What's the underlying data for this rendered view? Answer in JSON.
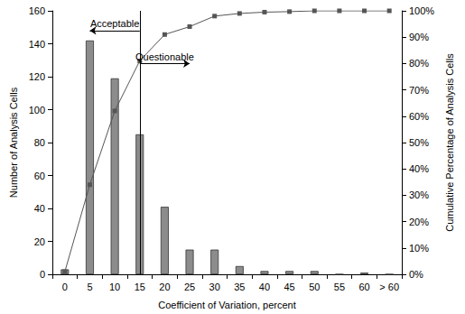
{
  "chart_data": {
    "type": "bar",
    "x_label": "Coefficient of Variation, percent",
    "y_label": "Number of Analysis Cells",
    "y2_label": "Cumulative Percentage of Analysis Cells",
    "categories": [
      "0",
      "5",
      "10",
      "15",
      "20",
      "25",
      "30",
      "35",
      "40",
      "45",
      "50",
      "55",
      "60",
      "> 60"
    ],
    "series": [
      {
        "name": "Number of Analysis Cells",
        "type": "bar",
        "color": "#8c8c8c",
        "values": [
          3,
          142,
          119,
          85,
          41,
          15,
          15,
          5,
          2,
          2,
          2,
          0,
          1,
          0
        ]
      },
      {
        "name": "Cumulative Percentage of Analysis Cells",
        "type": "line",
        "axis": "y2",
        "color": "#555555",
        "marker": "square",
        "line_style": "solid",
        "values": [
          1,
          34,
          62,
          81,
          91,
          94,
          98,
          99,
          99.5,
          99.7,
          100,
          100,
          100,
          100
        ]
      }
    ],
    "ylim": [
      0,
      160
    ],
    "yticks": [
      0,
      20,
      40,
      60,
      80,
      100,
      120,
      140,
      160
    ],
    "y2lim": [
      0,
      100
    ],
    "y2ticks": [
      {
        "value": 0,
        "label": "0%"
      },
      {
        "value": 10,
        "label": "10%"
      },
      {
        "value": 20,
        "label": "20%"
      },
      {
        "value": 30,
        "label": "30%"
      },
      {
        "value": 40,
        "label": "40%"
      },
      {
        "value": 50,
        "label": "50%"
      },
      {
        "value": 60,
        "label": "60%"
      },
      {
        "value": 70,
        "label": "70%"
      },
      {
        "value": 80,
        "label": "80%"
      },
      {
        "value": 90,
        "label": "90%"
      },
      {
        "value": 100,
        "label": "100%"
      }
    ],
    "threshold": "15",
    "annotations": [
      {
        "text": "Acceptable",
        "direction": "left"
      },
      {
        "text": "Questionable",
        "direction": "right"
      }
    ],
    "grid": false
  }
}
